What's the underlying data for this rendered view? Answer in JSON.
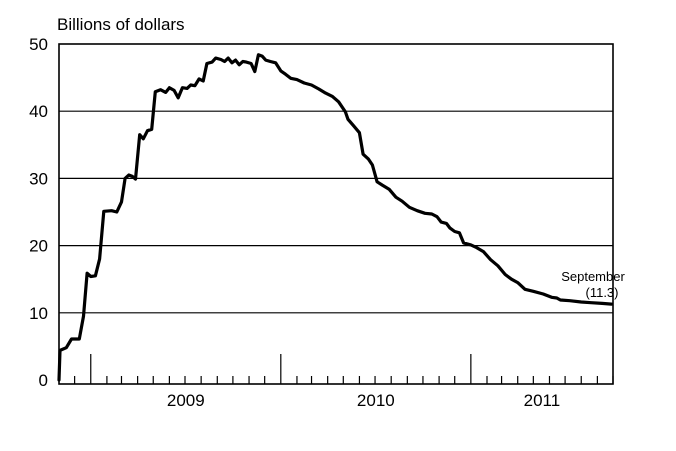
{
  "chart_data": {
    "type": "line",
    "ylabel": "Billions of dollars",
    "ylim": [
      0,
      50
    ],
    "xlim": [
      "2008-11-01",
      "2011-10-01"
    ],
    "y_ticks": [
      "0",
      "10",
      "20",
      "30",
      "40",
      "50"
    ],
    "x_ticks": [
      "2009",
      "2010",
      "2011"
    ],
    "grid": true,
    "annotation": {
      "text": "September",
      "value_text": "(11.3)"
    },
    "series": [
      {
        "color": "#000000",
        "points": [
          [
            "2008-11-01",
            0.0
          ],
          [
            "2008-11-03",
            4.4
          ],
          [
            "2008-11-15",
            4.8
          ],
          [
            "2008-11-25",
            6.1
          ],
          [
            "2008-12-10",
            6.1
          ],
          [
            "2008-12-18",
            9.5
          ],
          [
            "2008-12-25",
            15.9
          ],
          [
            "2009-01-01",
            15.4
          ],
          [
            "2009-01-10",
            15.5
          ],
          [
            "2009-01-18",
            18.0
          ],
          [
            "2009-01-26",
            25.1
          ],
          [
            "2009-02-10",
            25.2
          ],
          [
            "2009-02-20",
            25.0
          ],
          [
            "2009-03-01",
            26.5
          ],
          [
            "2009-03-08",
            30.0
          ],
          [
            "2009-03-15",
            30.5
          ],
          [
            "2009-03-22",
            30.3
          ],
          [
            "2009-03-28",
            29.9
          ],
          [
            "2009-04-05",
            36.5
          ],
          [
            "2009-04-12",
            35.9
          ],
          [
            "2009-04-20",
            37.1
          ],
          [
            "2009-04-28",
            37.3
          ],
          [
            "2009-05-05",
            42.9
          ],
          [
            "2009-05-15",
            43.2
          ],
          [
            "2009-05-25",
            42.8
          ],
          [
            "2009-06-01",
            43.5
          ],
          [
            "2009-06-10",
            43.1
          ],
          [
            "2009-06-18",
            42.0
          ],
          [
            "2009-06-26",
            43.5
          ],
          [
            "2009-07-05",
            43.4
          ],
          [
            "2009-07-12",
            43.9
          ],
          [
            "2009-07-20",
            43.8
          ],
          [
            "2009-07-28",
            44.8
          ],
          [
            "2009-08-05",
            44.5
          ],
          [
            "2009-08-12",
            47.1
          ],
          [
            "2009-08-22",
            47.3
          ],
          [
            "2009-08-29",
            47.9
          ],
          [
            "2009-09-08",
            47.7
          ],
          [
            "2009-09-15",
            47.4
          ],
          [
            "2009-09-22",
            47.9
          ],
          [
            "2009-09-29",
            47.2
          ],
          [
            "2009-10-06",
            47.6
          ],
          [
            "2009-10-13",
            46.9
          ],
          [
            "2009-10-20",
            47.4
          ],
          [
            "2009-10-27",
            47.3
          ],
          [
            "2009-11-05",
            47.1
          ],
          [
            "2009-11-12",
            45.9
          ],
          [
            "2009-11-19",
            48.4
          ],
          [
            "2009-11-26",
            48.2
          ],
          [
            "2009-12-03",
            47.6
          ],
          [
            "2009-12-12",
            47.4
          ],
          [
            "2009-12-22",
            47.2
          ],
          [
            "2010-01-01",
            46.0
          ],
          [
            "2010-01-10",
            45.5
          ],
          [
            "2010-01-20",
            44.9
          ],
          [
            "2010-02-01",
            44.7
          ],
          [
            "2010-02-15",
            44.2
          ],
          [
            "2010-03-01",
            43.9
          ],
          [
            "2010-03-15",
            43.3
          ],
          [
            "2010-03-28",
            42.7
          ],
          [
            "2010-04-10",
            42.2
          ],
          [
            "2010-04-22",
            41.4
          ],
          [
            "2010-05-05",
            39.9
          ],
          [
            "2010-05-10",
            38.8
          ],
          [
            "2010-05-20",
            37.9
          ],
          [
            "2010-06-01",
            36.8
          ],
          [
            "2010-06-08",
            33.6
          ],
          [
            "2010-06-18",
            32.9
          ],
          [
            "2010-06-26",
            32.0
          ],
          [
            "2010-07-05",
            29.5
          ],
          [
            "2010-07-15",
            29.0
          ],
          [
            "2010-07-28",
            28.4
          ],
          [
            "2010-08-10",
            27.2
          ],
          [
            "2010-08-22",
            26.6
          ],
          [
            "2010-09-05",
            25.7
          ],
          [
            "2010-09-20",
            25.2
          ],
          [
            "2010-10-05",
            24.8
          ],
          [
            "2010-10-18",
            24.7
          ],
          [
            "2010-10-28",
            24.3
          ],
          [
            "2010-11-05",
            23.5
          ],
          [
            "2010-11-15",
            23.3
          ],
          [
            "2010-11-22",
            22.6
          ],
          [
            "2010-12-01",
            22.1
          ],
          [
            "2010-12-10",
            21.9
          ],
          [
            "2010-12-18",
            20.4
          ],
          [
            "2011-01-01",
            20.1
          ],
          [
            "2011-01-12",
            19.7
          ],
          [
            "2011-01-25",
            19.1
          ],
          [
            "2011-02-08",
            17.9
          ],
          [
            "2011-02-22",
            17.0
          ],
          [
            "2011-03-08",
            15.7
          ],
          [
            "2011-03-20",
            15.0
          ],
          [
            "2011-04-01",
            14.5
          ],
          [
            "2011-04-15",
            13.5
          ],
          [
            "2011-05-01",
            13.2
          ],
          [
            "2011-05-20",
            12.8
          ],
          [
            "2011-06-05",
            12.3
          ],
          [
            "2011-06-15",
            12.2
          ],
          [
            "2011-06-22",
            11.9
          ],
          [
            "2011-07-10",
            11.8
          ],
          [
            "2011-08-01",
            11.6
          ],
          [
            "2011-08-20",
            11.5
          ],
          [
            "2011-09-10",
            11.4
          ],
          [
            "2011-09-28",
            11.3
          ]
        ]
      }
    ]
  }
}
